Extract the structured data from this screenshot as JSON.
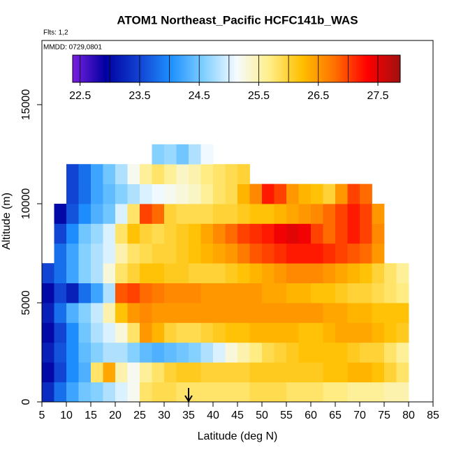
{
  "chart_data": {
    "type": "heatmap",
    "title": "ATOM1 Northeast_Pacific HCFC141b_WAS",
    "flights_label": "Flts: 1,2",
    "dates_label": "MMDD: 0729,0801",
    "x_label": "Latitude (deg N)",
    "y_label": "Altitude (m)",
    "xlim": [
      5,
      85
    ],
    "xticks": [
      5,
      10,
      15,
      20,
      25,
      30,
      35,
      40,
      45,
      50,
      55,
      60,
      65,
      70,
      75,
      80,
      85
    ],
    "ylim": [
      0,
      18240
    ],
    "yticks": [
      0,
      5000,
      10000,
      15000
    ],
    "arrow_lat": 35,
    "x_edges": [
      5,
      7.5,
      10,
      12.5,
      15,
      17.5,
      20,
      22.5,
      25,
      27.5,
      30,
      32.5,
      35,
      37.5,
      40,
      42.5,
      45,
      47.5,
      50,
      52.5,
      55,
      57.5,
      60,
      62.5,
      65,
      67.5,
      70,
      72.5,
      75,
      77.5,
      80
    ],
    "y_edges": [
      0,
      1000,
      2000,
      3000,
      4000,
      5000,
      6000,
      7000,
      8000,
      9000,
      10000,
      11000,
      12000,
      13000
    ],
    "values": [
      [
        23.3,
        23.8,
        24.2,
        24.5,
        24.6,
        24.8,
        25.0,
        25.2,
        25.8,
        25.9,
        25.9,
        25.8,
        25.8,
        25.8,
        25.8,
        25.8,
        25.8,
        25.9,
        25.9,
        25.9,
        25.8,
        25.8,
        25.8,
        25.7,
        25.7,
        25.6,
        25.6,
        25.6,
        25.5,
        25.5
      ],
      [
        23.0,
        23.5,
        24.0,
        24.3,
        25.8,
        26.4,
        25.5,
        25.2,
        25.6,
        25.8,
        26.0,
        26.1,
        26.1,
        26.0,
        26.0,
        26.0,
        26.0,
        26.1,
        26.1,
        26.1,
        26.1,
        26.1,
        26.1,
        26.2,
        26.2,
        26.3,
        26.3,
        26.2,
        26.0,
        25.8
      ],
      [
        23.2,
        23.6,
        24.0,
        24.4,
        24.6,
        24.8,
        24.8,
        24.6,
        24.4,
        24.3,
        24.4,
        24.5,
        24.6,
        24.8,
        25.0,
        25.3,
        25.5,
        25.7,
        25.9,
        26.0,
        26.1,
        26.2,
        26.2,
        26.2,
        26.2,
        26.1,
        26.0,
        26.0,
        25.8,
        25.6
      ],
      [
        23.0,
        23.5,
        24.0,
        24.5,
        24.8,
        25.0,
        25.3,
        25.8,
        26.5,
        26.3,
        26.0,
        25.9,
        25.9,
        26.0,
        26.1,
        26.2,
        26.2,
        26.3,
        26.3,
        26.3,
        26.3,
        26.2,
        26.2,
        26.3,
        26.4,
        26.4,
        26.4,
        26.3,
        26.2,
        26.1
      ],
      [
        23.2,
        23.8,
        24.3,
        24.6,
        24.9,
        25.5,
        26.2,
        26.5,
        26.6,
        26.5,
        26.5,
        26.5,
        26.5,
        26.5,
        26.5,
        26.5,
        26.5,
        26.5,
        26.5,
        26.5,
        26.5,
        26.5,
        26.5,
        26.4,
        26.4,
        26.3,
        26.3,
        26.2,
        26.2,
        26.2
      ],
      [
        23.0,
        23.5,
        23.2,
        23.8,
        24.2,
        24.8,
        26.9,
        27.0,
        26.8,
        26.7,
        26.6,
        26.6,
        26.6,
        26.5,
        26.5,
        26.5,
        26.5,
        26.5,
        26.4,
        26.4,
        26.3,
        26.3,
        26.2,
        26.2,
        26.1,
        26.0,
        26.0,
        25.9,
        25.8,
        25.7
      ],
      [
        23.5,
        23.8,
        24.2,
        24.6,
        24.8,
        25.3,
        25.8,
        26.0,
        26.2,
        26.2,
        26.1,
        26.1,
        26.0,
        26.0,
        26.0,
        26.1,
        26.2,
        26.3,
        26.4,
        26.5,
        26.6,
        26.6,
        26.6,
        26.5,
        26.4,
        26.3,
        26.2,
        26.0,
        25.8,
        25.6
      ],
      [
        null,
        23.8,
        24.2,
        24.6,
        24.8,
        25.0,
        25.5,
        25.8,
        25.9,
        26.0,
        26.0,
        26.1,
        26.2,
        26.3,
        26.4,
        26.5,
        26.7,
        26.9,
        27.0,
        27.1,
        27.2,
        27.2,
        27.2,
        27.1,
        27.0,
        26.9,
        26.8,
        26.5,
        null,
        null
      ],
      [
        null,
        23.5,
        24.0,
        24.5,
        24.7,
        25.0,
        25.8,
        26.2,
        26.0,
        25.9,
        26.0,
        26.1,
        26.2,
        26.4,
        26.6,
        26.8,
        27.0,
        27.1,
        27.2,
        27.4,
        27.5,
        27.4,
        27.0,
        26.8,
        27.0,
        27.2,
        27.0,
        26.6,
        null,
        null
      ],
      [
        null,
        23.0,
        23.6,
        24.0,
        24.3,
        24.5,
        25.0,
        25.8,
        27.0,
        26.8,
        26.0,
        25.9,
        25.9,
        25.9,
        26.0,
        26.0,
        26.1,
        26.2,
        26.2,
        26.3,
        26.4,
        26.5,
        26.6,
        26.8,
        27.0,
        27.2,
        27.0,
        26.5,
        null,
        null
      ],
      [
        null,
        null,
        23.5,
        23.8,
        24.2,
        24.4,
        24.6,
        24.8,
        25.0,
        25.1,
        25.2,
        25.3,
        25.4,
        25.6,
        25.8,
        25.9,
        26.3,
        26.6,
        27.2,
        27.0,
        26.5,
        26.3,
        26.2,
        26.0,
        26.5,
        27.0,
        26.8,
        null,
        null,
        null
      ],
      [
        null,
        null,
        23.5,
        23.8,
        24.2,
        24.5,
        24.8,
        25.2,
        25.6,
        25.8,
        25.6,
        25.4,
        25.5,
        25.7,
        25.8,
        25.9,
        26.0,
        null,
        null,
        null,
        null,
        null,
        null,
        null,
        null,
        null,
        null,
        null,
        null,
        null
      ],
      [
        null,
        null,
        null,
        null,
        null,
        null,
        null,
        null,
        null,
        24.6,
        24.7,
        24.5,
        24.8,
        25.1,
        null,
        null,
        null,
        null,
        null,
        null,
        null,
        null,
        null,
        null,
        null,
        null,
        null,
        null,
        null,
        null
      ]
    ],
    "colorbar": {
      "lim": [
        22.375,
        27.875
      ],
      "ticks": [
        22.5,
        23.5,
        24.5,
        25.5,
        26.5,
        27.5
      ],
      "dividers": [
        22.5,
        23,
        23.5,
        24,
        24.5,
        25,
        25.5,
        26,
        26.5,
        27,
        27.5
      ],
      "colors": [
        "#7b1fe0",
        "#0000a0",
        "#1040d0",
        "#1e90ff",
        "#7fcfff",
        "#f5fbff",
        "#ffee88",
        "#ffc000",
        "#ff7000",
        "#ff0000",
        "#a01010"
      ]
    }
  }
}
